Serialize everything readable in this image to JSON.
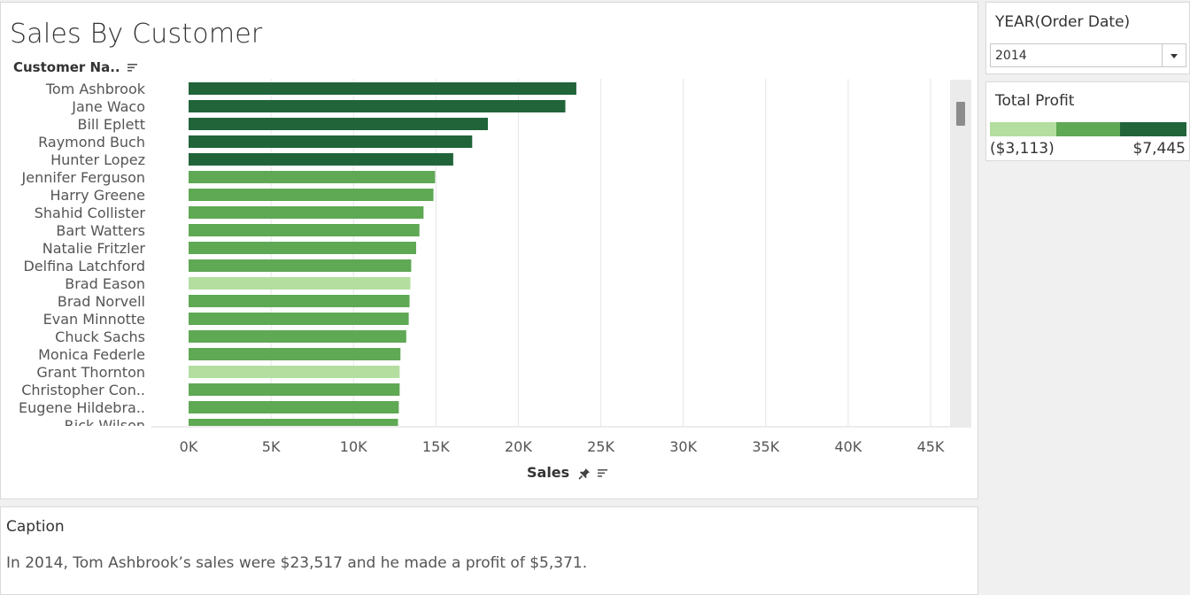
{
  "sheet": {
    "title": "Sales By Customer",
    "row_header": "Customer Na.."
  },
  "filter": {
    "label": "YEAR(Order Date)",
    "value": "2014"
  },
  "legend": {
    "title": "Total Profit",
    "min_label": "($3,113)",
    "max_label": "$7,445",
    "colors": [
      "#b3dea0",
      "#5fa854",
      "#21643a"
    ]
  },
  "caption": {
    "title": "Caption",
    "text": "In 2014, Tom Ashbrook’s sales were $23,517 and he made a profit of $5,371."
  },
  "chart_data": {
    "type": "bar",
    "orientation": "horizontal",
    "xlabel": "Sales",
    "xlim": [
      0,
      45000
    ],
    "x_ticks": [
      0,
      5000,
      10000,
      15000,
      20000,
      25000,
      30000,
      35000,
      40000,
      45000
    ],
    "x_tick_labels": [
      "0K",
      "5K",
      "10K",
      "15K",
      "20K",
      "25K",
      "30K",
      "35K",
      "40K",
      "45K"
    ],
    "grid": "vertical",
    "color_by": "Total Profit",
    "categories": [
      "Tom Ashbrook",
      "Jane Waco",
      "Bill Eplett",
      "Raymond Buch",
      "Hunter Lopez",
      "Jennifer Ferguson",
      "Harry Greene",
      "Shahid Collister",
      "Bart Watters",
      "Natalie Fritzler",
      "Delfina Latchford",
      "Brad Eason",
      "Brad Norvell",
      "Evan Minnotte",
      "Chuck Sachs",
      "Monica Federle",
      "Grant Thornton",
      "Christopher Con..",
      "Eugene Hildebra..",
      "Rick Wilson"
    ],
    "values": [
      23517,
      22850,
      18150,
      17200,
      16050,
      14950,
      14850,
      14250,
      14000,
      13800,
      13500,
      13450,
      13400,
      13350,
      13200,
      12850,
      12800,
      12800,
      12750,
      12700
    ],
    "colors": [
      "#21643a",
      "#21643a",
      "#21643a",
      "#21643a",
      "#21643a",
      "#5fa854",
      "#5fa854",
      "#5fa854",
      "#5fa854",
      "#5fa854",
      "#5fa854",
      "#b3dea0",
      "#5fa854",
      "#5fa854",
      "#5fa854",
      "#5fa854",
      "#b3dea0",
      "#5fa854",
      "#5fa854",
      "#5fa854"
    ]
  }
}
